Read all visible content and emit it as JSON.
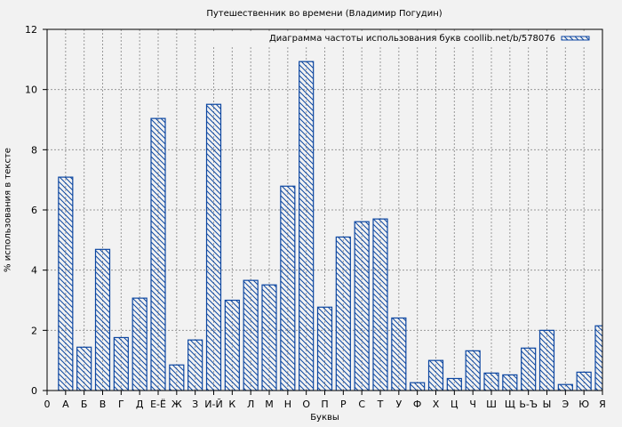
{
  "chart_data": {
    "type": "bar",
    "title": "Путешественник во времени (Владимир Погудин)",
    "xlabel": "Буквы",
    "ylabel": "% использования в тексте",
    "ylim": [
      0,
      12
    ],
    "yticks": [
      0,
      2,
      4,
      6,
      8,
      10,
      12
    ],
    "grid": true,
    "legend_position": "upper right",
    "x_tick_labels": [
      "0",
      "А",
      "Б",
      "В",
      "Г",
      "Д",
      "Е-Ё",
      "Ж",
      "З",
      "И-Й",
      "К",
      "Л",
      "М",
      "Н",
      "О",
      "П",
      "Р",
      "С",
      "Т",
      "У",
      "Ф",
      "Х",
      "Ц",
      "Ч",
      "Ш",
      "Щ",
      "Ь-Ъ",
      "Ы",
      "Э",
      "Ю",
      "Я"
    ],
    "categories": [
      "А",
      "Б",
      "В",
      "Г",
      "Д",
      "Е-Ё",
      "Ж",
      "З",
      "И-Й",
      "К",
      "Л",
      "М",
      "Н",
      "О",
      "П",
      "Р",
      "С",
      "Т",
      "У",
      "Ф",
      "Х",
      "Ц",
      "Ч",
      "Ш",
      "Щ",
      "Ь-Ъ",
      "Ы",
      "Э",
      "Ю",
      "Я"
    ],
    "series": [
      {
        "name": "Диаграмма частоты использования букв coollib.net/b/578076",
        "color": "#0d47a1",
        "hatch": "\\\\\\",
        "values": [
          7.09,
          1.44,
          4.69,
          1.76,
          3.07,
          9.04,
          0.85,
          1.68,
          9.51,
          3.0,
          3.66,
          3.51,
          6.79,
          10.93,
          2.77,
          5.1,
          5.61,
          5.7,
          2.41,
          0.26,
          1.0,
          0.4,
          1.32,
          0.58,
          0.52,
          1.41,
          2.0,
          0.2,
          0.61,
          2.15
        ]
      }
    ]
  },
  "colors": {
    "background": "#f2f2f2",
    "bar_edge": "#0d47a1",
    "grid": "#999999"
  }
}
